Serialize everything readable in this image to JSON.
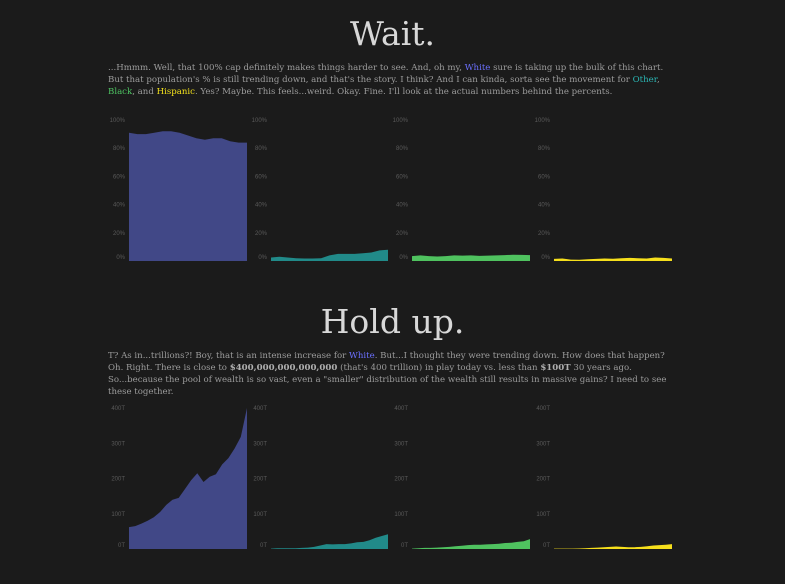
{
  "sections": [
    {
      "title": "Wait.",
      "paragraph": [
        {
          "text": "...Hmmm. Well, that 100% cap definitely makes things harder to see. And, oh my, "
        },
        {
          "text": "White",
          "color": "#6b70ff"
        },
        {
          "text": " sure is taking up the bulk of this chart. But that population's % is still trending down, and that's the story. I think? And I can kinda, sorta see the movement for "
        },
        {
          "text": "Other",
          "color": "#2ab5b3"
        },
        {
          "text": ", "
        },
        {
          "text": "Black",
          "color": "#4ec462"
        },
        {
          "text": ", and "
        },
        {
          "text": "Hispanic",
          "color": "#f3e21c"
        },
        {
          "text": ". Yes? Maybe. This feels...weird. Okay. Fine. I'll look at the actual numbers behind the percents."
        }
      ]
    },
    {
      "title": "Hold up.",
      "paragraph": [
        {
          "text": "T? As in...trillions?! Boy, that is an intense increase for "
        },
        {
          "text": "White",
          "color": "#6b70ff"
        },
        {
          "text": ". But...I thought they were trending down. How does that happen? Oh. Right. There is close to "
        },
        {
          "text": "$400,000,000,000,000",
          "bold": true
        },
        {
          "text": " (that's 400 trillion) in play today vs. less than "
        },
        {
          "text": "$100T",
          "bold": true
        },
        {
          "text": " 30 years ago. So...because the pool of wealth is so vast, even a \"smaller\" distribution of the wealth still results in massive gains? I need to see these together."
        }
      ]
    }
  ],
  "chart_data": [
    {
      "type": "area",
      "ylim": [
        0,
        100
      ],
      "yticks": [
        "0%",
        "20%",
        "40%",
        "60%",
        "80%",
        "100%"
      ],
      "grid": false,
      "series": [
        {
          "color": "#414887",
          "values": [
            91,
            90,
            90,
            91,
            92,
            92,
            91,
            89,
            87,
            86,
            87,
            87,
            85,
            84,
            84
          ]
        },
        {
          "color": "#218a89",
          "values": [
            2.5,
            3,
            2.5,
            2,
            1.8,
            1.8,
            2,
            4,
            5,
            5,
            5,
            5.5,
            6,
            7.5,
            8
          ]
        },
        {
          "color": "#4fc25f",
          "values": [
            3.5,
            4,
            3.5,
            3.2,
            3.5,
            4,
            3.8,
            4,
            3.6,
            3.8,
            4,
            4.2,
            4.5,
            4.3,
            4.2
          ]
        },
        {
          "color": "#f6df1c",
          "values": [
            1.5,
            1.8,
            1,
            0.9,
            1.3,
            1.5,
            1.8,
            1.6,
            2,
            2.2,
            2,
            1.8,
            2.5,
            2.2,
            1.8
          ]
        }
      ]
    },
    {
      "type": "area",
      "ylim": [
        0,
        400
      ],
      "yticks": [
        "0T",
        "100T",
        "200T",
        "300T",
        "400T"
      ],
      "grid": false,
      "series": [
        {
          "color": "#414887",
          "values": [
            62,
            65,
            72,
            80,
            90,
            105,
            125,
            140,
            145,
            170,
            195,
            215,
            190,
            205,
            212,
            240,
            258,
            285,
            318,
            400
          ]
        },
        {
          "color": "#218a89",
          "values": [
            1,
            2,
            2,
            2,
            2,
            3,
            4,
            6,
            10,
            14,
            13,
            14,
            14,
            16,
            19,
            20,
            25,
            32,
            37,
            42
          ]
        },
        {
          "color": "#4fc25f",
          "values": [
            1,
            2,
            3,
            3,
            4,
            5,
            6,
            8,
            9,
            11,
            12,
            12,
            13,
            14,
            15,
            17,
            18,
            20,
            22,
            28
          ]
        },
        {
          "color": "#f6df1c",
          "values": [
            1,
            1,
            1,
            1,
            1.5,
            2,
            3,
            4,
            5,
            6,
            7,
            6,
            5,
            5,
            6,
            8,
            10,
            11,
            12,
            14
          ]
        }
      ]
    }
  ]
}
